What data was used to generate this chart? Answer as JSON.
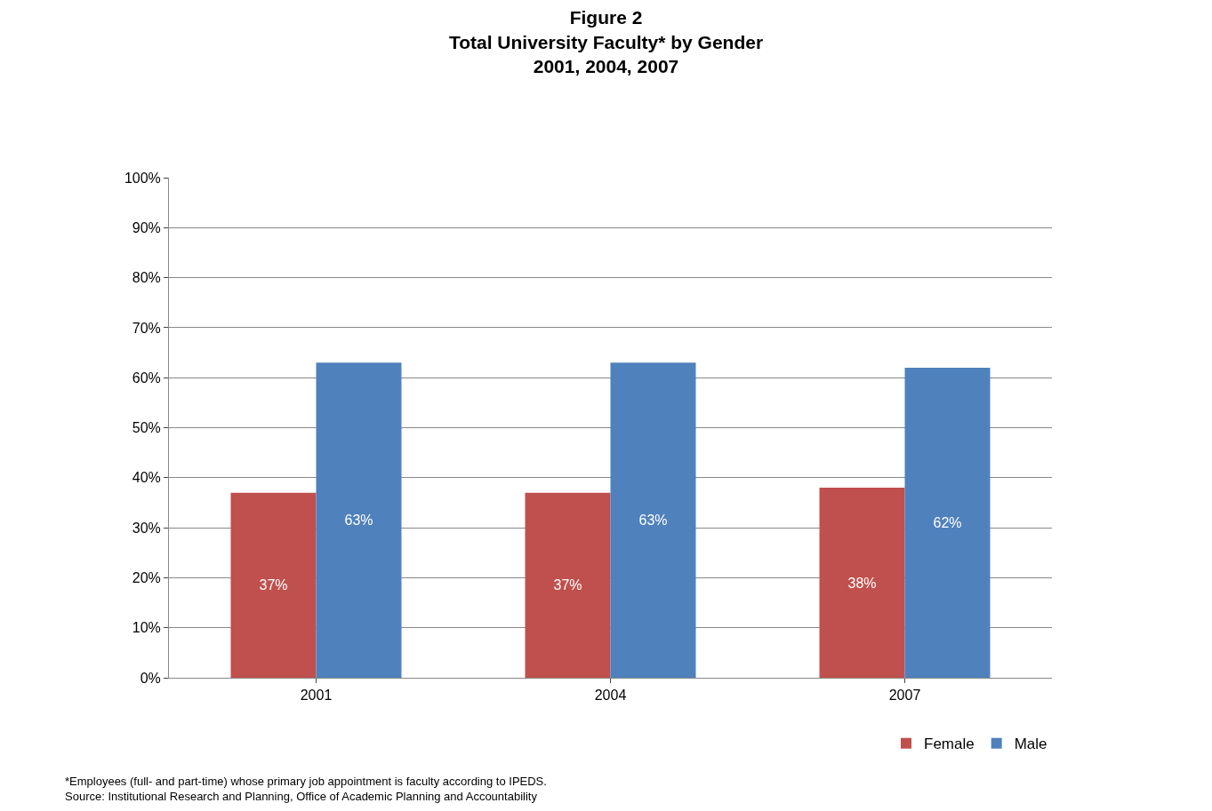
{
  "chart_data": {
    "type": "bar",
    "title": "Figure 2\nTotal University Faculty* by Gender\n2001, 2004, 2007",
    "categories": [
      "2001",
      "2004",
      "2007"
    ],
    "series": [
      {
        "name": "Female",
        "color": "#c0504d",
        "values": [
          37,
          37,
          38
        ],
        "value_labels": [
          "37%",
          "37%",
          "38%"
        ]
      },
      {
        "name": "Male",
        "color": "#4f81bd",
        "values": [
          63,
          63,
          62
        ],
        "value_labels": [
          "63%",
          "63%",
          "62%"
        ]
      }
    ],
    "ylim": [
      0,
      100
    ],
    "yticks": [
      {
        "value": 0,
        "label": "0%"
      },
      {
        "value": 10,
        "label": "10%"
      },
      {
        "value": 20,
        "label": "20%"
      },
      {
        "value": 30,
        "label": "30%"
      },
      {
        "value": 40,
        "label": "40%"
      },
      {
        "value": 50,
        "label": "50%"
      },
      {
        "value": 60,
        "label": "60%"
      },
      {
        "value": 70,
        "label": "70%"
      },
      {
        "value": 80,
        "label": "80%"
      },
      {
        "value": 90,
        "label": "90%"
      },
      {
        "value": 100,
        "label": "100%"
      }
    ],
    "grid": "y",
    "legend": "bottom right",
    "annotations": [
      "*Employees (full- and part-time) whose primary job appointment is faculty according to IPEDS.",
      "Source: Institutional Research and Planning, Office of Academic Planning and Accountability"
    ]
  }
}
